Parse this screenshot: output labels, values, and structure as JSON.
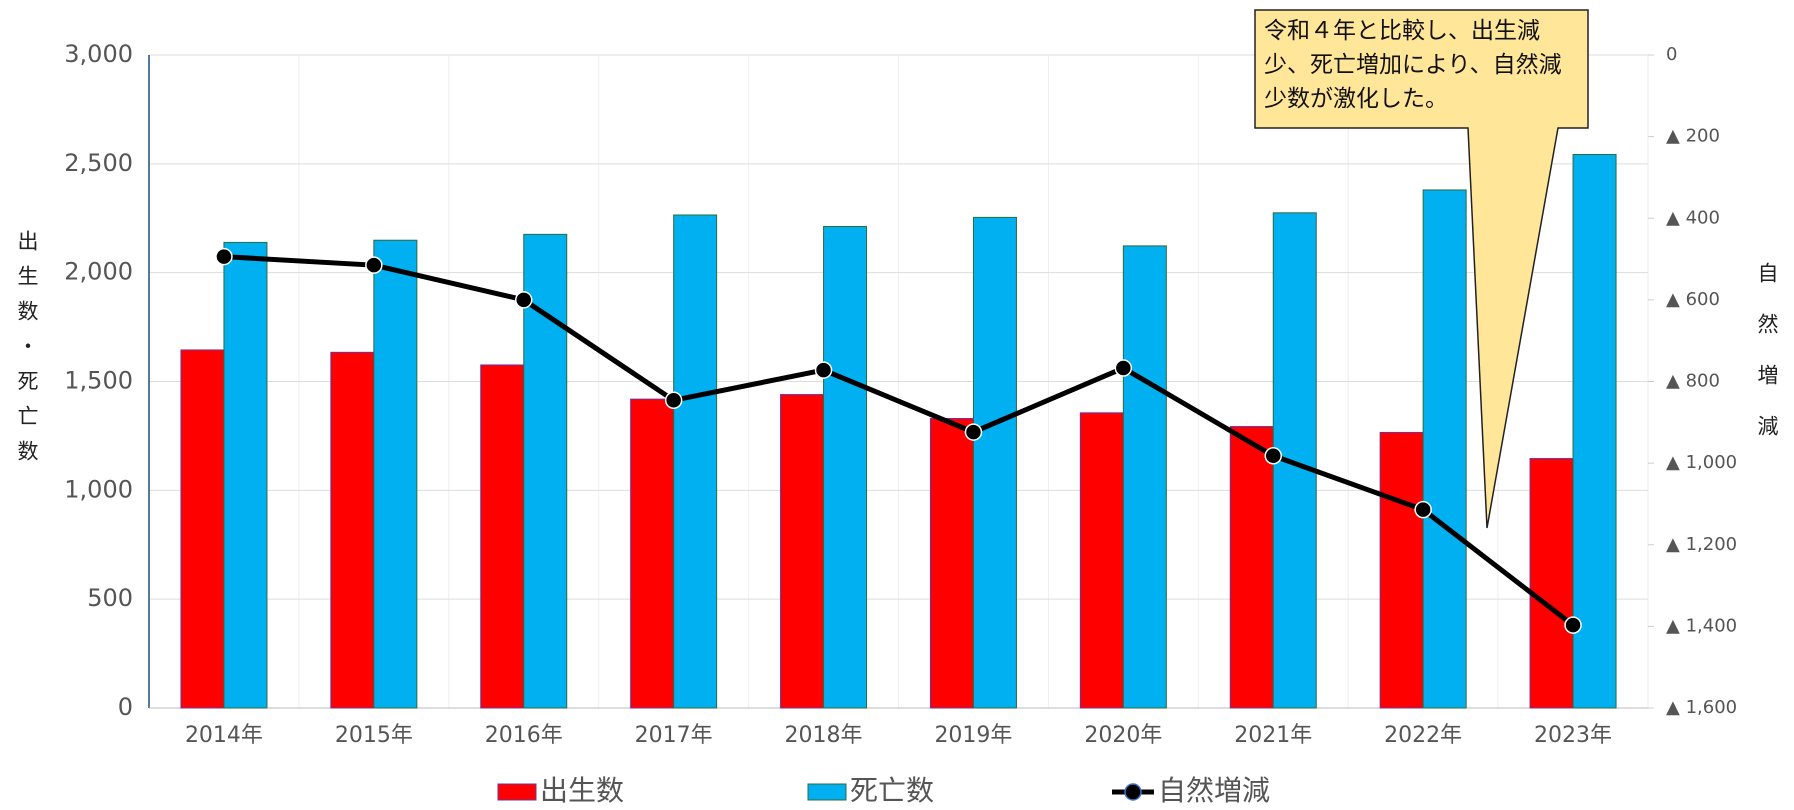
{
  "chart_data": {
    "type": "bar",
    "categories": [
      "2014年",
      "2015年",
      "2016年",
      "2017年",
      "2018年",
      "2019年",
      "2020年",
      "2021年",
      "2022年",
      "2023年"
    ],
    "series": [
      {
        "name": "出生数",
        "type": "bar",
        "color": "#ff0000",
        "values": [
          1645,
          1634,
          1576,
          1419,
          1440,
          1330,
          1356,
          1293,
          1266,
          1146
        ]
      },
      {
        "name": "死亡数",
        "type": "bar",
        "color": "#00b0f0",
        "values": [
          2139,
          2149,
          2176,
          2265,
          2212,
          2254,
          2123,
          2275,
          2380,
          2543
        ]
      },
      {
        "name": "自然増減",
        "type": "line",
        "axis": "y2",
        "color": "#000000",
        "values": [
          -494,
          -515,
          -600,
          -846,
          -772,
          -924,
          -767,
          -982,
          -1114,
          -1397
        ]
      }
    ],
    "ylabel": "出生数・死亡数",
    "y2label": "自然増減",
    "ylim": [
      0,
      3000
    ],
    "yticks": [
      0,
      {
        "value": 500,
        "label": "500"
      },
      {
        "value": 1000,
        "label": "1,000"
      },
      {
        "value": 1500,
        "label": "1,500"
      },
      {
        "value": 2000,
        "label": "2,000"
      },
      {
        "value": 2500,
        "label": "2,500"
      },
      {
        "value": 3000,
        "label": "3,000"
      }
    ],
    "y2lim": [
      0,
      -1600
    ],
    "y2ticks": [
      0,
      {
        "value": -200,
        "label": "▲ 200"
      },
      {
        "value": -400,
        "label": "▲ 400"
      },
      {
        "value": -600,
        "label": "▲ 600"
      },
      {
        "value": -800,
        "label": "▲ 800"
      },
      {
        "value": -1000,
        "label": "▲ 1,000"
      },
      {
        "value": -1200,
        "label": "▲ 1,200"
      },
      {
        "value": -1400,
        "label": "▲ 1,400"
      },
      {
        "value": -1600,
        "label": "▲ 1,600"
      }
    ],
    "annotation": "令和４年と比較し、出生減少、死亡増加により、自然減少数が激化した。",
    "grid": true,
    "legend": "bottom"
  }
}
